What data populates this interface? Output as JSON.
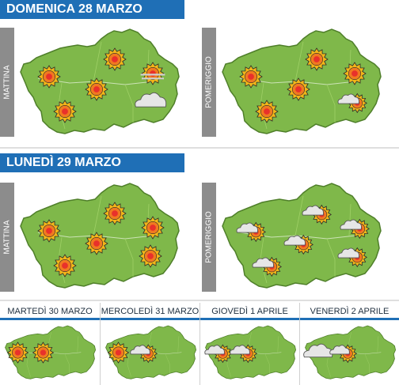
{
  "days": [
    {
      "title": "DOMENICA 28 MARZO",
      "mattina_label": "MATTINA",
      "pomeriggio_label": "POMERIGGIO",
      "mattina_icons": [
        "sun",
        "sun",
        "sun",
        "sun",
        "sun-haze",
        "cloud"
      ],
      "pomeriggio_icons": [
        "sun",
        "sun",
        "sun",
        "sun",
        "sun",
        "sun-cloud"
      ]
    },
    {
      "title": "LUNEDÌ 29 MARZO",
      "mattina_label": "MATTINA",
      "pomeriggio_label": "POMERIGGIO",
      "mattina_icons": [
        "sun",
        "sun",
        "sun",
        "sun",
        "sun",
        "sun"
      ],
      "pomeriggio_icons": [
        "sun-cloud",
        "sun-cloud",
        "sun-cloud",
        "sun-cloud",
        "sun-cloud",
        "sun-cloud"
      ]
    }
  ],
  "forecast": [
    {
      "label": "MARTEDÌ 30 MARZO",
      "icons": [
        "sun",
        "sun"
      ]
    },
    {
      "label": "MERCOLEDÌ 31 MARZO",
      "icons": [
        "sun",
        "sun-cloud"
      ]
    },
    {
      "label": "GIOVEDÌ 1 APRILE",
      "icons": [
        "sun-cloud",
        "sun-cloud"
      ]
    },
    {
      "label": "VENERDÌ 2 APRILE",
      "icons": [
        "cloud",
        "sun-cloud"
      ]
    }
  ],
  "colors": {
    "region_fill": "#7fb84a",
    "region_stroke": "#4f7f2a",
    "header_blue": "#1f6fb6",
    "sun": "#f2b619",
    "label_gray": "#8c8c8c"
  }
}
